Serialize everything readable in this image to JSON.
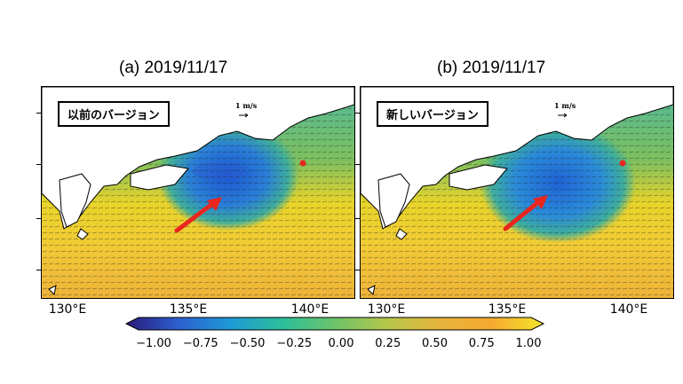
{
  "panels": [
    {
      "title": "(a)  2019/11/17",
      "label": "以前のバージョン",
      "scale_ref": "1 m/s"
    },
    {
      "title": "(b)  2019/11/17",
      "label": "新しいバージョン",
      "scale_ref": "1 m/s"
    }
  ],
  "x_ticks": [
    "130°E",
    "135°E",
    "140°E"
  ],
  "colorbar": {
    "ticks": [
      "−1.00",
      "−0.75",
      "−0.50",
      "−0.25",
      "0.00",
      "0.25",
      "0.50",
      "0.75",
      "1.00"
    ],
    "range": [
      -1.0,
      1.0
    ],
    "colors": [
      "#2a1a7a",
      "#2c5fd0",
      "#1e9ad6",
      "#2cbf9a",
      "#6cc46a",
      "#b6c64a",
      "#e6b43c",
      "#f6a830",
      "#f6e62a"
    ]
  },
  "colors": {
    "land": "#ffffff",
    "ocean_warm": "#eeb33a",
    "ocean_mid": "#5bbf7e",
    "ocean_high": "#f2d82c",
    "eddy_core": "#1f63d4",
    "arrow": "#e8261e",
    "station_marker": "#e8261e"
  }
}
